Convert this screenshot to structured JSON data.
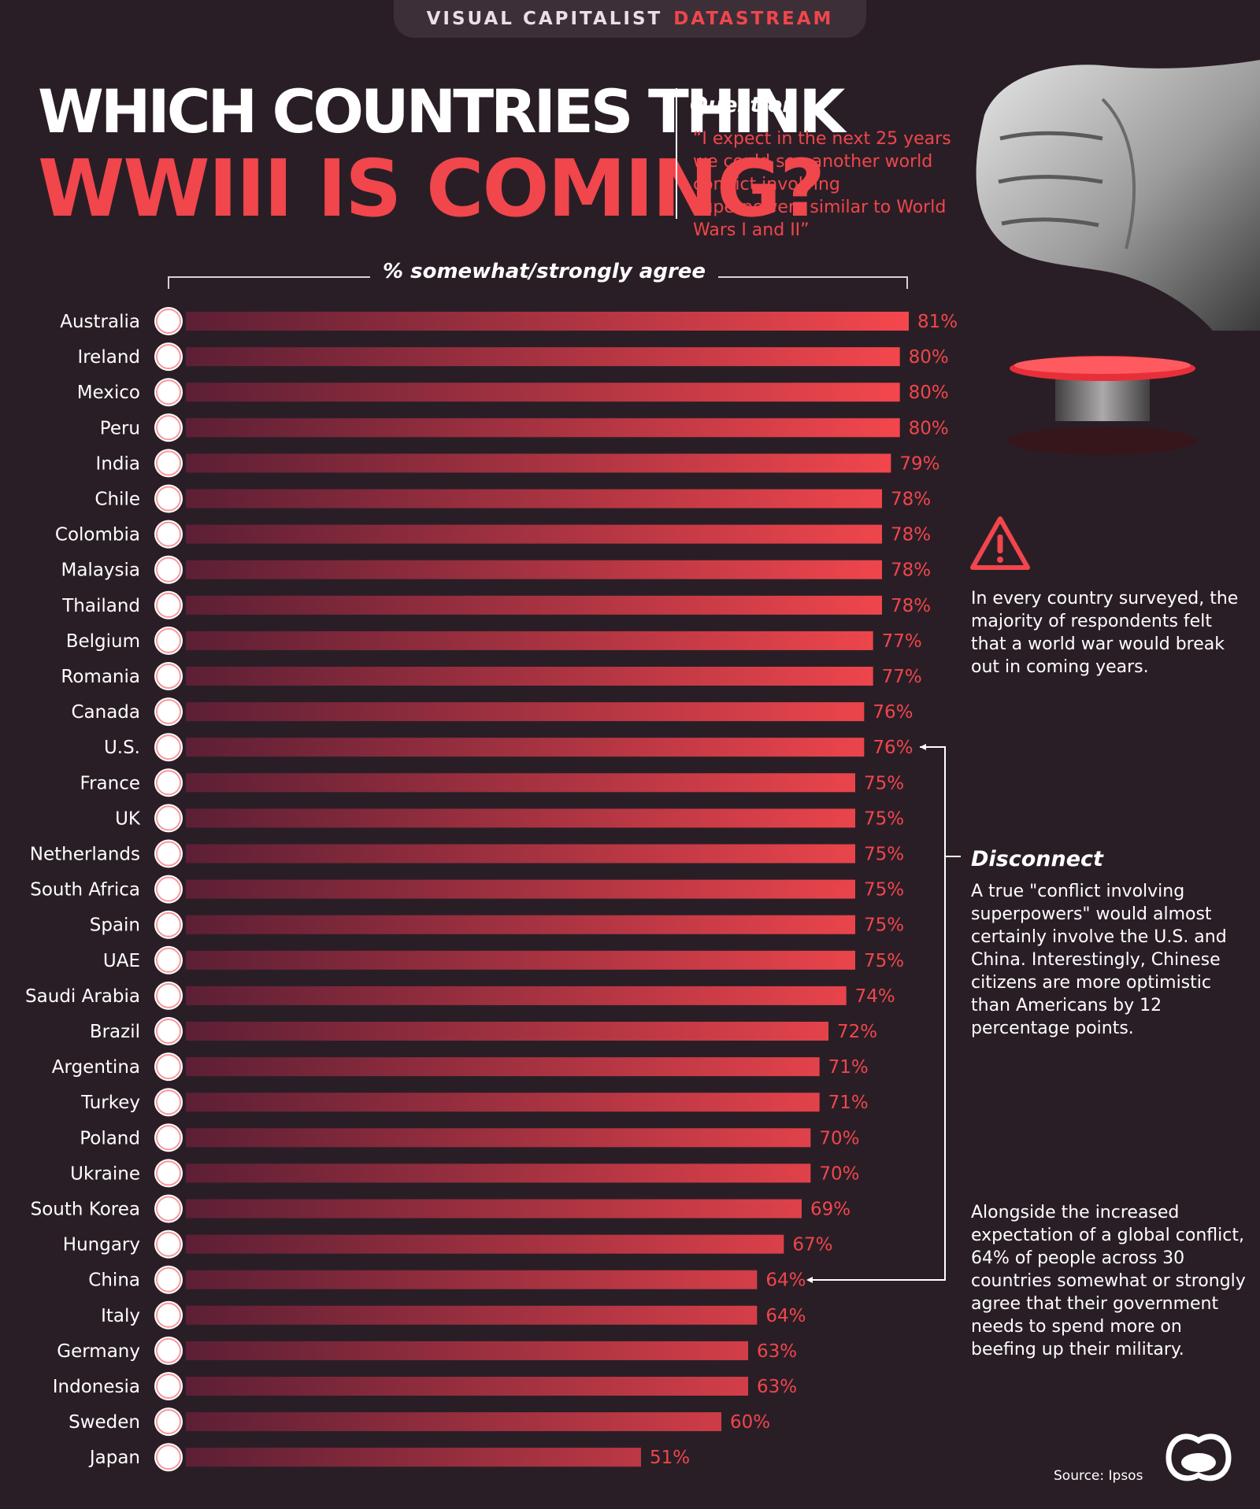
{
  "header": {
    "brand_primary": "VISUAL CAPITALIST",
    "brand_secondary": "DATASTREAM"
  },
  "chart_data": {
    "type": "bar",
    "orientation": "horizontal",
    "title": "WHICH COUNTRIES THINK WWIII IS COMING?",
    "title_line1": "WHICH COUNTRIES THINK",
    "title_line2": "WWIII IS COMING?",
    "axis_label": "% somewhat/strongly agree",
    "unit": "%",
    "categories": [
      "Australia",
      "Ireland",
      "Mexico",
      "Peru",
      "India",
      "Chile",
      "Colombia",
      "Malaysia",
      "Thailand",
      "Belgium",
      "Romania",
      "Canada",
      "U.S.",
      "France",
      "UK",
      "Netherlands",
      "South Africa",
      "Spain",
      "UAE",
      "Saudi Arabia",
      "Brazil",
      "Argentina",
      "Turkey",
      "Poland",
      "Ukraine",
      "South Korea",
      "Hungary",
      "China",
      "Italy",
      "Germany",
      "Indonesia",
      "Sweden",
      "Japan"
    ],
    "values": [
      81,
      80,
      80,
      80,
      79,
      78,
      78,
      78,
      78,
      77,
      77,
      76,
      76,
      75,
      75,
      75,
      75,
      75,
      75,
      74,
      72,
      71,
      71,
      70,
      70,
      69,
      67,
      64,
      64,
      63,
      63,
      60,
      51
    ],
    "value_labels": [
      "81%",
      "80%",
      "80%",
      "80%",
      "79%",
      "78%",
      "78%",
      "78%",
      "78%",
      "77%",
      "77%",
      "76%",
      "76%",
      "75%",
      "75%",
      "75%",
      "75%",
      "75%",
      "75%",
      "74%",
      "72%",
      "71%",
      "71%",
      "70%",
      "70%",
      "69%",
      "67%",
      "64%",
      "64%",
      "63%",
      "63%",
      "60%",
      "51%"
    ],
    "xlim": [
      0,
      81
    ],
    "bar_color_start": "#5c1f35",
    "bar_color_end": "#f5474d"
  },
  "question": {
    "label": "Question",
    "text": "“I expect in the next 25 years we could see another world conflict involving superpowers similar to World Wars I and II”"
  },
  "sidebar": {
    "note1": "In every country surveyed, the majority of respondents felt that a world war would break out in coming years.",
    "disconnect_heading": "Disconnect",
    "disconnect_text": "A true \"conflict involving superpowers\" would almost certainly involve the U.S. and China. Interestingly, Chinese citizens are more optimistic than Americans by 12 percentage points.",
    "note3": "Alongside the increased expectation of a global conflict, 64% of people across 30 countries somewhat or strongly agree that their government needs to spend more on beefing up their military."
  },
  "footer": {
    "source": "Source: Ipsos"
  },
  "colors": {
    "background": "#2a1e26",
    "accent": "#f0464c",
    "tab": "#3c2f38"
  },
  "icons": {
    "warning": "warning-triangle-icon",
    "fist": "fist-illustration",
    "button": "red-button-illustration",
    "logo": "visual-capitalist-logo-icon"
  }
}
